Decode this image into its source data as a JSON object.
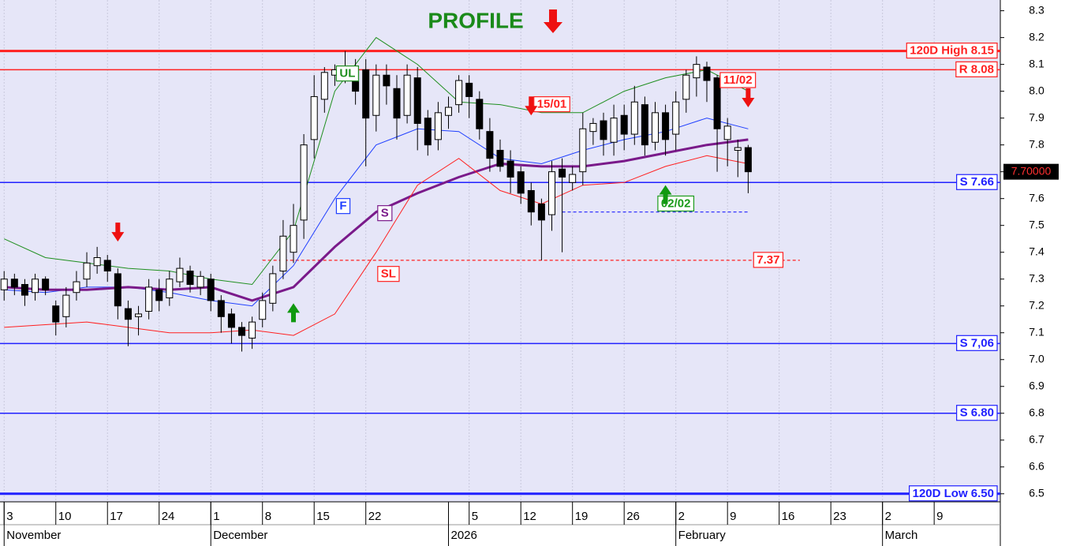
{
  "chart_data": {
    "type": "candlestick",
    "title": "PROFILE",
    "title_color": "#1a8a1a",
    "ylim": [
      6.47,
      8.34
    ],
    "yticks": [
      8.3,
      8.2,
      8.1,
      {
        "value": 8,
        "label": "8.0"
      },
      7.9,
      7.8,
      7.7,
      7.6,
      7.5,
      7.4,
      7.3,
      7.2,
      7.1,
      {
        "value": 7,
        "label": "7.0"
      },
      6.9,
      6.8,
      6.7,
      6.6,
      6.5
    ],
    "xlim": [
      -0.4,
      96.4
    ],
    "grid": "x",
    "xticks": [
      {
        "value": 0,
        "label": "3"
      },
      {
        "value": 5,
        "label": "10"
      },
      {
        "value": 10,
        "label": "17"
      },
      {
        "value": 15,
        "label": "24"
      },
      {
        "value": 20,
        "label": "1"
      },
      {
        "value": 25,
        "label": "8"
      },
      {
        "value": 30,
        "label": "15"
      },
      {
        "value": 35,
        "label": "22"
      },
      {
        "value": 45,
        "label": "5"
      },
      {
        "value": 50,
        "label": "12"
      },
      {
        "value": 55,
        "label": "19"
      },
      {
        "value": 60,
        "label": "26"
      },
      {
        "value": 65,
        "label": "2"
      },
      {
        "value": 70,
        "label": "9"
      },
      {
        "value": 75,
        "label": "16"
      },
      {
        "value": 80,
        "label": "23"
      },
      {
        "value": 85,
        "label": "2"
      },
      {
        "value": 90,
        "label": "9"
      }
    ],
    "months": [
      {
        "value": 0,
        "label": "November"
      },
      {
        "value": 20,
        "label": "December"
      },
      {
        "value": 43,
        "label": "2026"
      },
      {
        "value": 65,
        "label": "February"
      },
      {
        "value": 85,
        "label": "March"
      }
    ],
    "candles": {
      "open": [
        7.26,
        7.3,
        7.28,
        7.25,
        7.3,
        7.2,
        7.16,
        7.25,
        7.3,
        7.35,
        7.37,
        7.32,
        7.19,
        7.16,
        7.18,
        7.26,
        7.23,
        7.29,
        7.33,
        7.27,
        7.3,
        7.22,
        7.17,
        7.12,
        7.08,
        7.15,
        7.21,
        7.33,
        7.4,
        7.52,
        7.82,
        7.97,
        8.06,
        8.07,
        8.08,
        8.08,
        7.91,
        8.06,
        8.01,
        7.91,
        8.05,
        7.9,
        7.82,
        7.91,
        7.95,
        8.03,
        7.97,
        7.85,
        7.78,
        7.74,
        7.7,
        7.63,
        7.58,
        7.54,
        7.71,
        7.66,
        7.7,
        7.85,
        7.89,
        7.81,
        7.91,
        7.84,
        7.95,
        7.81,
        7.92,
        7.84,
        7.97,
        8.05,
        8.09,
        8.05,
        7.82,
        7.78,
        7.79
      ],
      "high": [
        7.33,
        7.32,
        7.3,
        7.32,
        7.31,
        7.22,
        7.27,
        7.33,
        7.4,
        7.42,
        7.39,
        7.34,
        7.22,
        7.2,
        7.3,
        7.3,
        7.33,
        7.38,
        7.35,
        7.33,
        7.32,
        7.24,
        7.19,
        7.14,
        7.16,
        7.25,
        7.35,
        7.52,
        7.58,
        7.84,
        8.06,
        8.09,
        8.1,
        8.15,
        8.12,
        8.12,
        8.1,
        8.1,
        8.06,
        8.1,
        8.09,
        7.93,
        7.96,
        7.98,
        8.06,
        8.06,
        8.0,
        7.9,
        7.82,
        7.78,
        7.72,
        7.66,
        7.6,
        7.74,
        7.75,
        7.72,
        7.92,
        7.9,
        7.92,
        7.95,
        7.95,
        8.02,
        7.98,
        7.96,
        7.95,
        8.0,
        8.08,
        8.13,
        8.11,
        8.06,
        7.9,
        7.82,
        7.8
      ],
      "low": [
        7.22,
        7.24,
        7.2,
        7.22,
        7.24,
        7.09,
        7.12,
        7.22,
        7.27,
        7.32,
        7.29,
        7.15,
        7.05,
        7.09,
        7.15,
        7.18,
        7.2,
        7.27,
        7.25,
        7.24,
        7.18,
        7.1,
        7.06,
        7.03,
        7.04,
        7.12,
        7.18,
        7.3,
        7.36,
        7.45,
        7.75,
        7.92,
        8.02,
        8.03,
        7.95,
        7.72,
        7.85,
        7.95,
        7.82,
        7.88,
        7.78,
        7.76,
        7.78,
        7.86,
        7.92,
        7.9,
        7.82,
        7.7,
        7.7,
        7.62,
        7.58,
        7.5,
        7.37,
        7.48,
        7.4,
        7.63,
        7.65,
        7.8,
        7.76,
        7.76,
        7.78,
        7.8,
        7.76,
        7.78,
        7.76,
        7.78,
        7.92,
        7.98,
        7.96,
        7.7,
        7.72,
        7.68,
        7.62
      ],
      "close": [
        7.3,
        7.27,
        7.24,
        7.3,
        7.26,
        7.14,
        7.24,
        7.29,
        7.36,
        7.38,
        7.33,
        7.2,
        7.15,
        7.17,
        7.27,
        7.22,
        7.3,
        7.34,
        7.28,
        7.31,
        7.22,
        7.16,
        7.12,
        7.09,
        7.14,
        7.22,
        7.32,
        7.46,
        7.5,
        7.8,
        7.98,
        8.07,
        8.08,
        8.09,
        8.0,
        7.9,
        8.06,
        8.02,
        7.9,
        8.06,
        7.88,
        7.8,
        7.92,
        7.94,
        8.04,
        7.98,
        7.86,
        7.75,
        7.72,
        7.68,
        7.62,
        7.55,
        7.52,
        7.7,
        7.68,
        7.69,
        7.86,
        7.88,
        7.82,
        7.9,
        7.84,
        7.96,
        7.8,
        7.92,
        7.82,
        7.96,
        8.06,
        8.1,
        8.04,
        7.86,
        7.87,
        7.79,
        7.7
      ]
    },
    "lines": [
      {
        "name": "UL",
        "color": "#1f8f1f",
        "width": 1,
        "x": [
          0,
          4,
          8,
          12,
          16,
          20,
          24,
          28,
          32,
          36,
          40,
          44,
          48,
          52,
          56,
          60,
          64,
          68,
          72
        ],
        "values": [
          7.45,
          7.38,
          7.36,
          7.34,
          7.33,
          7.3,
          7.28,
          7.48,
          8.0,
          8.2,
          8.1,
          7.96,
          7.95,
          7.92,
          7.92,
          8.0,
          8.05,
          8.08,
          8.0
        ]
      },
      {
        "name": "F",
        "color": "#1f3fff",
        "width": 1,
        "x": [
          0,
          4,
          8,
          12,
          16,
          20,
          24,
          28,
          32,
          36,
          40,
          44,
          48,
          52,
          56,
          60,
          64,
          68,
          72
        ],
        "values": [
          7.26,
          7.25,
          7.27,
          7.27,
          7.25,
          7.22,
          7.2,
          7.35,
          7.6,
          7.8,
          7.86,
          7.85,
          7.75,
          7.73,
          7.78,
          7.82,
          7.85,
          7.9,
          7.86
        ]
      },
      {
        "name": "S",
        "color": "#7a1a8a",
        "width": 3,
        "x": [
          0,
          4,
          8,
          12,
          16,
          20,
          24,
          28,
          32,
          36,
          40,
          44,
          48,
          52,
          56,
          60,
          64,
          68,
          72
        ],
        "values": [
          7.27,
          7.26,
          7.26,
          7.27,
          7.26,
          7.27,
          7.22,
          7.27,
          7.42,
          7.55,
          7.62,
          7.68,
          7.73,
          7.72,
          7.72,
          7.74,
          7.77,
          7.8,
          7.82
        ]
      },
      {
        "name": "SL",
        "color": "#ff2020",
        "width": 1,
        "x": [
          0,
          4,
          8,
          12,
          16,
          20,
          24,
          28,
          32,
          36,
          40,
          44,
          48,
          52,
          56,
          60,
          64,
          68,
          72
        ],
        "values": [
          7.12,
          7.13,
          7.14,
          7.12,
          7.1,
          7.1,
          7.11,
          7.09,
          7.17,
          7.4,
          7.65,
          7.75,
          7.63,
          7.58,
          7.65,
          7.66,
          7.72,
          7.76,
          7.73
        ]
      }
    ],
    "hlines": [
      {
        "value": 8.15,
        "label": "120D High 8.15",
        "color": "#ff2020",
        "width": 3
      },
      {
        "value": 8.08,
        "label": "R 8.08",
        "color": "#ff2020",
        "width": 1.5
      },
      {
        "value": 7.66,
        "label": "S 7.66",
        "color": "#2020ff",
        "width": 1.5
      },
      {
        "value": 7.06,
        "label": "S 7,06",
        "color": "#2020ff",
        "width": 1.5
      },
      {
        "value": 6.8,
        "label": "S 6.80",
        "color": "#2020ff",
        "width": 1.5
      },
      {
        "value": 6.5,
        "label": "120D Low 6.50",
        "color": "#2020ff",
        "width": 3
      }
    ],
    "levels": [
      {
        "value": 7.37,
        "label": "7.37",
        "from": 25,
        "to": 77,
        "color": "#ff2020"
      },
      {
        "value": 7.55,
        "from": 54,
        "to": 72,
        "color": "#2020ff"
      }
    ],
    "annotations": [
      {
        "text": "15/01",
        "x": 53,
        "y": 7.95,
        "color": "#ff2020"
      },
      {
        "text": "11/02",
        "x": 71,
        "y": 8.04,
        "color": "#ff2020"
      },
      {
        "text": "02/02",
        "x": 65,
        "y": 7.58,
        "color": "#1a9a1a"
      }
    ],
    "signals": [
      {
        "x": 11,
        "y": 7.44,
        "direction": "down"
      },
      {
        "x": 51,
        "y": 7.91,
        "direction": "down"
      },
      {
        "x": 72,
        "y": 7.94,
        "direction": "down"
      },
      {
        "x": 28,
        "y": 7.21,
        "direction": "up"
      },
      {
        "x": 64,
        "y": 7.65,
        "direction": "up"
      }
    ],
    "last_price": {
      "value": 7.7,
      "label": "7.70000"
    }
  }
}
